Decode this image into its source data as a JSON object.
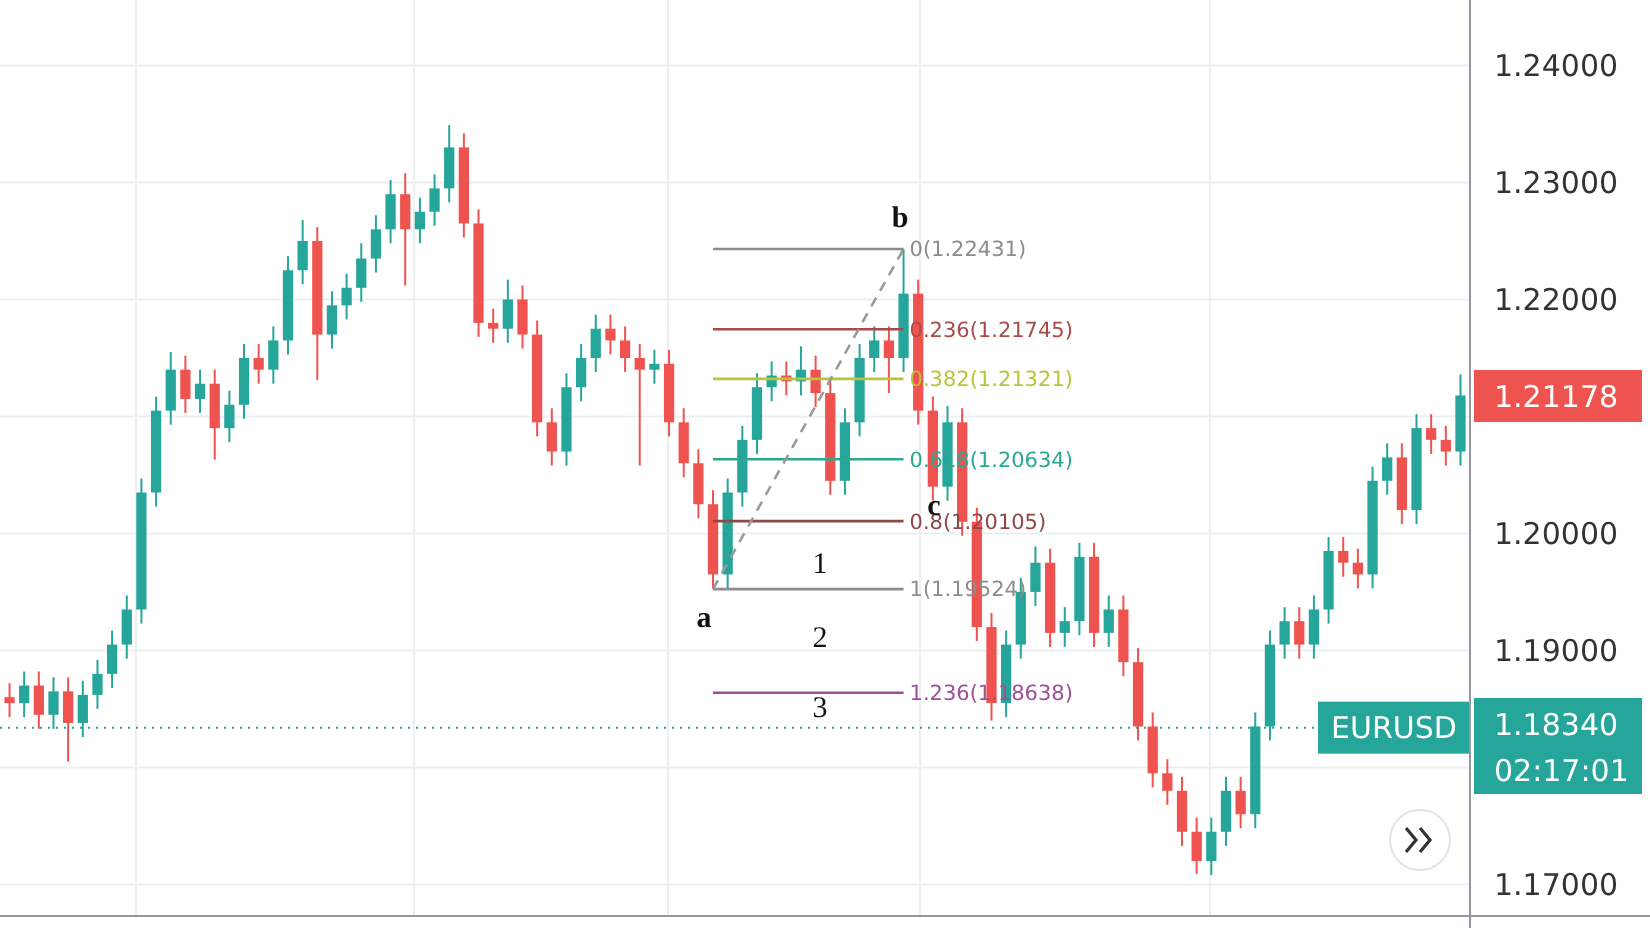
{
  "chart_data": {
    "type": "candlestick",
    "tick_labels": "y",
    "grid": true,
    "categories": [
      null,
      null,
      null,
      null,
      null,
      null,
      null,
      null,
      null,
      null,
      null,
      null,
      null,
      null,
      null,
      null,
      null,
      null,
      null,
      null,
      null,
      null,
      null,
      null,
      null,
      null,
      null,
      null,
      null,
      null,
      null,
      null,
      null,
      null,
      null,
      null,
      null,
      null,
      null,
      null,
      null,
      null,
      null,
      null,
      null,
      null,
      null,
      null,
      null,
      null,
      null,
      null,
      null,
      null,
      null,
      null,
      null,
      null,
      null,
      null,
      null,
      null,
      null,
      null,
      null,
      null,
      null,
      null,
      null,
      null,
      null,
      null,
      null,
      null,
      null,
      null,
      null,
      null,
      null,
      null,
      null,
      null,
      null,
      null,
      null,
      null,
      null,
      null,
      null,
      null,
      null,
      null,
      null,
      null,
      null,
      null,
      null,
      null,
      null,
      null
    ],
    "ylim": [
      1.1673,
      1.2456
    ],
    "yticks": [
      {
        "value": 1.17,
        "label": "1.17000"
      },
      {
        "value": 1.18,
        "label": null
      },
      {
        "value": 1.19,
        "label": "1.19000"
      },
      {
        "value": 1.2,
        "label": "1.20000"
      },
      {
        "value": 1.21,
        "label": null
      },
      {
        "value": 1.22,
        "label": "1.22000"
      },
      {
        "value": 1.23,
        "label": "1.23000"
      },
      {
        "value": 1.24,
        "label": "1.24000"
      }
    ],
    "ohlc": [
      [
        1.186,
        1.1872,
        1.1843,
        1.1855
      ],
      [
        1.1855,
        1.1882,
        1.1843,
        1.187
      ],
      [
        1.187,
        1.1882,
        1.1833,
        1.1845
      ],
      [
        1.1845,
        1.1877,
        1.1833,
        1.1865
      ],
      [
        1.1865,
        1.1877,
        1.1805,
        1.1838
      ],
      [
        1.1838,
        1.1874,
        1.1826,
        1.1862
      ],
      [
        1.1862,
        1.1892,
        1.185,
        1.188
      ],
      [
        1.188,
        1.1917,
        1.1868,
        1.1905
      ],
      [
        1.1905,
        1.1947,
        1.1893,
        1.1935
      ],
      [
        1.1935,
        1.2047,
        1.1923,
        1.2035
      ],
      [
        1.2035,
        1.2117,
        1.2023,
        1.2105
      ],
      [
        1.2105,
        1.2155,
        1.2093,
        1.214
      ],
      [
        1.214,
        1.2152,
        1.2103,
        1.2115
      ],
      [
        1.2115,
        1.214,
        1.2103,
        1.2128
      ],
      [
        1.2128,
        1.214,
        1.2063,
        1.209
      ],
      [
        1.209,
        1.2122,
        1.2078,
        1.211
      ],
      [
        1.211,
        1.2162,
        1.2098,
        1.215
      ],
      [
        1.215,
        1.2162,
        1.2128,
        1.214
      ],
      [
        1.214,
        1.2177,
        1.2128,
        1.2165
      ],
      [
        1.2165,
        1.2237,
        1.2153,
        1.2225
      ],
      [
        1.2225,
        1.2268,
        1.2213,
        1.225
      ],
      [
        1.225,
        1.2262,
        1.2131,
        1.217
      ],
      [
        1.217,
        1.2207,
        1.2158,
        1.2195
      ],
      [
        1.2195,
        1.2222,
        1.2183,
        1.221
      ],
      [
        1.221,
        1.2248,
        1.2198,
        1.2235
      ],
      [
        1.2235,
        1.2272,
        1.2223,
        1.226
      ],
      [
        1.226,
        1.2302,
        1.2248,
        1.229
      ],
      [
        1.229,
        1.2308,
        1.2212,
        1.226
      ],
      [
        1.226,
        1.2287,
        1.2248,
        1.2275
      ],
      [
        1.2275,
        1.2307,
        1.2263,
        1.2295
      ],
      [
        1.2295,
        1.2349,
        1.2283,
        1.233
      ],
      [
        1.233,
        1.2342,
        1.2253,
        1.2265
      ],
      [
        1.2265,
        1.2277,
        1.2168,
        1.218
      ],
      [
        1.218,
        1.2192,
        1.2163,
        1.2175
      ],
      [
        1.2175,
        1.2217,
        1.2163,
        1.22
      ],
      [
        1.22,
        1.2212,
        1.2158,
        1.217
      ],
      [
        1.217,
        1.2182,
        1.2083,
        1.2095
      ],
      [
        1.2095,
        1.2107,
        1.2058,
        1.207
      ],
      [
        1.207,
        1.2137,
        1.2058,
        1.2125
      ],
      [
        1.2125,
        1.2162,
        1.2113,
        1.215
      ],
      [
        1.215,
        1.2187,
        1.2138,
        1.2175
      ],
      [
        1.2175,
        1.2187,
        1.2153,
        1.2165
      ],
      [
        1.2165,
        1.2177,
        1.2138,
        1.215
      ],
      [
        1.215,
        1.2162,
        1.2058,
        1.214
      ],
      [
        1.214,
        1.2157,
        1.2128,
        1.2145
      ],
      [
        1.2145,
        1.2157,
        1.2083,
        1.2095
      ],
      [
        1.2095,
        1.2107,
        1.2048,
        1.206
      ],
      [
        1.206,
        1.2072,
        1.2013,
        1.2025
      ],
      [
        1.2025,
        1.2037,
        1.19524,
        1.1965
      ],
      [
        1.1965,
        1.2047,
        1.1953,
        1.2035
      ],
      [
        1.2035,
        1.2092,
        1.2023,
        1.208
      ],
      [
        1.208,
        1.2137,
        1.2068,
        1.2125
      ],
      [
        1.2125,
        1.2147,
        1.2113,
        1.2135
      ],
      [
        1.2135,
        1.2147,
        1.2118,
        1.213
      ],
      [
        1.213,
        1.216,
        1.2118,
        1.214
      ],
      [
        1.214,
        1.2152,
        1.2108,
        1.212
      ],
      [
        1.212,
        1.2132,
        1.2033,
        1.2045
      ],
      [
        1.2045,
        1.2107,
        1.2033,
        1.2095
      ],
      [
        1.2095,
        1.2162,
        1.2083,
        1.215
      ],
      [
        1.215,
        1.2177,
        1.2138,
        1.2165
      ],
      [
        1.2165,
        1.2177,
        1.212,
        1.215
      ],
      [
        1.215,
        1.22431,
        1.2138,
        1.2205
      ],
      [
        1.2205,
        1.2217,
        1.2093,
        1.2105
      ],
      [
        1.2105,
        1.2117,
        1.2028,
        1.204
      ],
      [
        1.204,
        1.2109,
        1.2028,
        1.2095
      ],
      [
        1.2095,
        1.2107,
        1.1998,
        1.201
      ],
      [
        1.201,
        1.2022,
        1.1908,
        1.192
      ],
      [
        1.192,
        1.1932,
        1.184,
        1.1855
      ],
      [
        1.1855,
        1.1917,
        1.1843,
        1.1905
      ],
      [
        1.1905,
        1.1962,
        1.1893,
        1.195
      ],
      [
        1.195,
        1.1989,
        1.1938,
        1.1975
      ],
      [
        1.1975,
        1.1987,
        1.1903,
        1.1915
      ],
      [
        1.1915,
        1.1937,
        1.1903,
        1.1925
      ],
      [
        1.1925,
        1.1992,
        1.1913,
        1.198
      ],
      [
        1.198,
        1.1992,
        1.1903,
        1.1915
      ],
      [
        1.1915,
        1.1947,
        1.1903,
        1.1935
      ],
      [
        1.1935,
        1.1947,
        1.1878,
        1.189
      ],
      [
        1.189,
        1.1902,
        1.1823,
        1.1835
      ],
      [
        1.1835,
        1.1847,
        1.1783,
        1.1795
      ],
      [
        1.1795,
        1.1807,
        1.1768,
        1.178
      ],
      [
        1.178,
        1.1792,
        1.1733,
        1.1745
      ],
      [
        1.1745,
        1.1757,
        1.1709,
        1.172
      ],
      [
        1.172,
        1.1757,
        1.1708,
        1.1745
      ],
      [
        1.1745,
        1.1792,
        1.1733,
        1.178
      ],
      [
        1.178,
        1.1792,
        1.1748,
        1.176
      ],
      [
        1.176,
        1.1847,
        1.1748,
        1.1835
      ],
      [
        1.1835,
        1.1917,
        1.1823,
        1.1905
      ],
      [
        1.1905,
        1.1937,
        1.1893,
        1.1925
      ],
      [
        1.1925,
        1.1937,
        1.1893,
        1.1905
      ],
      [
        1.1905,
        1.1947,
        1.1893,
        1.1935
      ],
      [
        1.1935,
        1.1997,
        1.1923,
        1.1985
      ],
      [
        1.1985,
        1.1997,
        1.1963,
        1.1975
      ],
      [
        1.1975,
        1.1987,
        1.1953,
        1.1965
      ],
      [
        1.1965,
        1.2057,
        1.1953,
        1.2045
      ],
      [
        1.2045,
        1.2077,
        1.2033,
        1.2065
      ],
      [
        1.2065,
        1.2077,
        1.2008,
        1.202
      ],
      [
        1.202,
        1.2102,
        1.2008,
        1.209
      ],
      [
        1.209,
        1.2102,
        1.2068,
        1.208
      ],
      [
        1.208,
        1.2092,
        1.2058,
        1.207
      ],
      [
        1.207,
        1.2136,
        1.2058,
        1.2118
      ]
    ],
    "series": [
      {
        "type": "line",
        "name": "0(1.22431)",
        "color": "#8c8c8c",
        "values": [
          null,
          null,
          null,
          null,
          null,
          null,
          null,
          null,
          null,
          null,
          null,
          null,
          null,
          null,
          null,
          null,
          null,
          null,
          null,
          null,
          null,
          null,
          null,
          null,
          null,
          null,
          null,
          null,
          null,
          null,
          null,
          null,
          null,
          null,
          null,
          null,
          null,
          null,
          null,
          null,
          null,
          null,
          null,
          null,
          null,
          null,
          null,
          null,
          1.22431,
          1.22431,
          1.22431,
          1.22431,
          1.22431,
          1.22431,
          1.22431,
          1.22431,
          1.22431,
          1.22431,
          1.22431,
          1.22431,
          1.22431,
          1.22431,
          null,
          null,
          null,
          null,
          null,
          null,
          null,
          null,
          null,
          null,
          null,
          null,
          null,
          null,
          null,
          null,
          null,
          null,
          null,
          null,
          null,
          null,
          null,
          null,
          null,
          null,
          null,
          null,
          null,
          null,
          null,
          null,
          null,
          null,
          null,
          null,
          null,
          null
        ]
      },
      {
        "type": "line",
        "name": "0.236(1.21745)",
        "color": "#a84a4a",
        "values": [
          null,
          null,
          null,
          null,
          null,
          null,
          null,
          null,
          null,
          null,
          null,
          null,
          null,
          null,
          null,
          null,
          null,
          null,
          null,
          null,
          null,
          null,
          null,
          null,
          null,
          null,
          null,
          null,
          null,
          null,
          null,
          null,
          null,
          null,
          null,
          null,
          null,
          null,
          null,
          null,
          null,
          null,
          null,
          null,
          null,
          null,
          null,
          null,
          1.21745,
          1.21745,
          1.21745,
          1.21745,
          1.21745,
          1.21745,
          1.21745,
          1.21745,
          1.21745,
          1.21745,
          1.21745,
          1.21745,
          1.21745,
          1.21745,
          null,
          null,
          null,
          null,
          null,
          null,
          null,
          null,
          null,
          null,
          null,
          null,
          null,
          null,
          null,
          null,
          null,
          null,
          null,
          null,
          null,
          null,
          null,
          null,
          null,
          null,
          null,
          null,
          null,
          null,
          null,
          null,
          null,
          null,
          null,
          null,
          null,
          null
        ]
      },
      {
        "type": "line",
        "name": "0.382(1.21321)",
        "color": "#b8c43c",
        "values": [
          null,
          null,
          null,
          null,
          null,
          null,
          null,
          null,
          null,
          null,
          null,
          null,
          null,
          null,
          null,
          null,
          null,
          null,
          null,
          null,
          null,
          null,
          null,
          null,
          null,
          null,
          null,
          null,
          null,
          null,
          null,
          null,
          null,
          null,
          null,
          null,
          null,
          null,
          null,
          null,
          null,
          null,
          null,
          null,
          null,
          null,
          null,
          null,
          1.21321,
          1.21321,
          1.21321,
          1.21321,
          1.21321,
          1.21321,
          1.21321,
          1.21321,
          1.21321,
          1.21321,
          1.21321,
          1.21321,
          1.21321,
          1.21321,
          null,
          null,
          null,
          null,
          null,
          null,
          null,
          null,
          null,
          null,
          null,
          null,
          null,
          null,
          null,
          null,
          null,
          null,
          null,
          null,
          null,
          null,
          null,
          null,
          null,
          null,
          null,
          null,
          null,
          null,
          null,
          null,
          null,
          null,
          null,
          null,
          null,
          null
        ]
      },
      {
        "type": "line",
        "name": "0.618(1.20634)",
        "color": "#2aa891",
        "values": [
          null,
          null,
          null,
          null,
          null,
          null,
          null,
          null,
          null,
          null,
          null,
          null,
          null,
          null,
          null,
          null,
          null,
          null,
          null,
          null,
          null,
          null,
          null,
          null,
          null,
          null,
          null,
          null,
          null,
          null,
          null,
          null,
          null,
          null,
          null,
          null,
          null,
          null,
          null,
          null,
          null,
          null,
          null,
          null,
          null,
          null,
          null,
          null,
          1.20634,
          1.20634,
          1.20634,
          1.20634,
          1.20634,
          1.20634,
          1.20634,
          1.20634,
          1.20634,
          1.20634,
          1.20634,
          1.20634,
          1.20634,
          1.20634,
          null,
          null,
          null,
          null,
          null,
          null,
          null,
          null,
          null,
          null,
          null,
          null,
          null,
          null,
          null,
          null,
          null,
          null,
          null,
          null,
          null,
          null,
          null,
          null,
          null,
          null,
          null,
          null,
          null,
          null,
          null,
          null,
          null,
          null,
          null,
          null,
          null,
          null
        ]
      },
      {
        "type": "line",
        "name": "0.8(1.20105)",
        "color": "#8e4848",
        "values": [
          null,
          null,
          null,
          null,
          null,
          null,
          null,
          null,
          null,
          null,
          null,
          null,
          null,
          null,
          null,
          null,
          null,
          null,
          null,
          null,
          null,
          null,
          null,
          null,
          null,
          null,
          null,
          null,
          null,
          null,
          null,
          null,
          null,
          null,
          null,
          null,
          null,
          null,
          null,
          null,
          null,
          null,
          null,
          null,
          null,
          null,
          null,
          null,
          1.20105,
          1.20105,
          1.20105,
          1.20105,
          1.20105,
          1.20105,
          1.20105,
          1.20105,
          1.20105,
          1.20105,
          1.20105,
          1.20105,
          1.20105,
          1.20105,
          null,
          null,
          null,
          null,
          null,
          null,
          null,
          null,
          null,
          null,
          null,
          null,
          null,
          null,
          null,
          null,
          null,
          null,
          null,
          null,
          null,
          null,
          null,
          null,
          null,
          null,
          null,
          null,
          null,
          null,
          null,
          null,
          null,
          null,
          null,
          null,
          null,
          null
        ]
      },
      {
        "type": "line",
        "name": "1(1.19524)",
        "color": "#8c8c8c",
        "values": [
          null,
          null,
          null,
          null,
          null,
          null,
          null,
          null,
          null,
          null,
          null,
          null,
          null,
          null,
          null,
          null,
          null,
          null,
          null,
          null,
          null,
          null,
          null,
          null,
          null,
          null,
          null,
          null,
          null,
          null,
          null,
          null,
          null,
          null,
          null,
          null,
          null,
          null,
          null,
          null,
          null,
          null,
          null,
          null,
          null,
          null,
          null,
          null,
          1.19524,
          1.19524,
          1.19524,
          1.19524,
          1.19524,
          1.19524,
          1.19524,
          1.19524,
          1.19524,
          1.19524,
          1.19524,
          1.19524,
          1.19524,
          1.19524,
          null,
          null,
          null,
          null,
          null,
          null,
          null,
          null,
          null,
          null,
          null,
          null,
          null,
          null,
          null,
          null,
          null,
          null,
          null,
          null,
          null,
          null,
          null,
          null,
          null,
          null,
          null,
          null,
          null,
          null,
          null,
          null,
          null,
          null,
          null,
          null,
          null,
          null
        ]
      },
      {
        "type": "line",
        "name": "1.236(1.18638)",
        "color": "#9c4f96",
        "values": [
          null,
          null,
          null,
          null,
          null,
          null,
          null,
          null,
          null,
          null,
          null,
          null,
          null,
          null,
          null,
          null,
          null,
          null,
          null,
          null,
          null,
          null,
          null,
          null,
          null,
          null,
          null,
          null,
          null,
          null,
          null,
          null,
          null,
          null,
          null,
          null,
          null,
          null,
          null,
          null,
          null,
          null,
          null,
          null,
          null,
          null,
          null,
          null,
          1.18638,
          1.18638,
          1.18638,
          1.18638,
          1.18638,
          1.18638,
          1.18638,
          1.18638,
          1.18638,
          1.18638,
          1.18638,
          1.18638,
          1.18638,
          1.18638,
          null,
          null,
          null,
          null,
          null,
          null,
          null,
          null,
          null,
          null,
          null,
          null,
          null,
          null,
          null,
          null,
          null,
          null,
          null,
          null,
          null,
          null,
          null,
          null,
          null,
          null,
          null,
          null,
          null,
          null,
          null,
          null,
          null,
          null,
          null,
          null,
          null,
          null
        ]
      },
      {
        "type": "line",
        "color": "#9a9a9a",
        "line_style": "dashed",
        "values": [
          null,
          null,
          null,
          null,
          null,
          null,
          null,
          null,
          null,
          null,
          null,
          null,
          null,
          null,
          null,
          null,
          null,
          null,
          null,
          null,
          null,
          null,
          null,
          null,
          null,
          null,
          null,
          null,
          null,
          null,
          null,
          null,
          null,
          null,
          null,
          null,
          null,
          null,
          null,
          null,
          null,
          null,
          null,
          null,
          null,
          null,
          null,
          null,
          1.19524,
          1.19748,
          1.19971,
          1.20195,
          1.20419,
          1.20643,
          1.20866,
          1.2109,
          1.21314,
          1.21537,
          1.21761,
          1.21985,
          1.22208,
          1.22431,
          null,
          null,
          null,
          null,
          null,
          null,
          null,
          null,
          null,
          null,
          null,
          null,
          null,
          null,
          null,
          null,
          null,
          null,
          null,
          null,
          null,
          null,
          null,
          null,
          null,
          null,
          null,
          null,
          null,
          null,
          null,
          null,
          null,
          null,
          null,
          null,
          null,
          null
        ]
      }
    ],
    "ref_lines": [
      {
        "axis": "y",
        "value": 1.1834,
        "label": "EURUSD",
        "color": "#26a69a",
        "line_style": "dotted"
      }
    ],
    "annotations": [
      "a",
      "b",
      "c",
      "1",
      "2",
      "3",
      "1.21178",
      "1.18340",
      "02:17:01"
    ]
  }
}
